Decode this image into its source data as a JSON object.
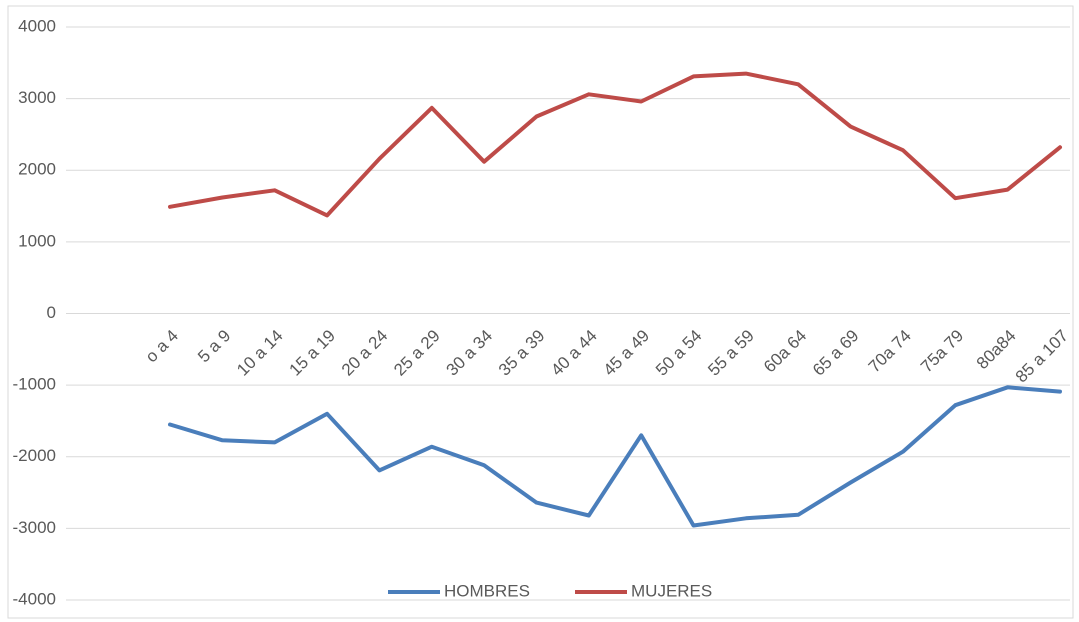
{
  "chart_data": {
    "type": "line",
    "categories": [
      "o a 4",
      "5 a 9",
      "10 a 14",
      "15 a 19",
      "20 a 24",
      "25 a 29",
      "30 a 34",
      "35 a 39",
      "40 a 44",
      "45 a 49",
      "50 a 54",
      "55 a 59",
      "60a 64",
      "65 a 69",
      "70a 74",
      "75a 79",
      "80a84",
      "85 a 107"
    ],
    "series": [
      {
        "name": "HOMBRES",
        "color": "#4a7ebb",
        "values": [
          -1550,
          -1770,
          -1800,
          -1400,
          -2190,
          -1860,
          -2120,
          -2640,
          -2820,
          -1700,
          -2960,
          -2860,
          -2810,
          -2360,
          -1930,
          -1280,
          -1030,
          -1090
        ]
      },
      {
        "name": "MUJERES",
        "color": "#be4b48",
        "values": [
          1490,
          1620,
          1720,
          1370,
          2160,
          2870,
          2120,
          2750,
          3060,
          2960,
          3310,
          3350,
          3200,
          2610,
          2280,
          1610,
          1730,
          2320
        ]
      }
    ],
    "ylim": [
      -4000,
      4000
    ],
    "yticks": [
      -4000,
      -3000,
      -2000,
      -1000,
      0,
      1000,
      2000,
      3000,
      4000
    ],
    "grid": true,
    "legend": "bottom"
  }
}
